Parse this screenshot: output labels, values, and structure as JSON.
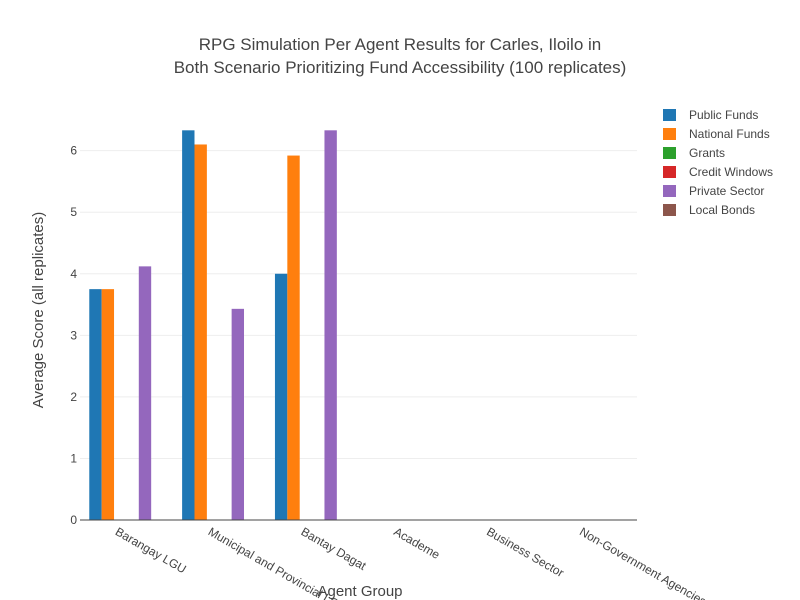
{
  "chart_data": {
    "type": "bar",
    "title": [
      "RPG Simulation Per Agent Results for Carles, Iloilo in",
      "Both Scenario Prioritizing Fund Accessibility (100 replicates)"
    ],
    "xlabel": "Agent Group",
    "ylabel": "Average Score (all replicates)",
    "categories": [
      "Barangay LGU",
      "Municipal and Provincial LGU",
      "Bantay Dagat",
      "Academe",
      "Business Sector",
      "Non-Government Agencies"
    ],
    "ylim": [
      0,
      6.66
    ],
    "yticks": [
      0,
      1,
      2,
      3,
      4,
      5,
      6
    ],
    "grid": true,
    "legend_position": "top-right",
    "series": [
      {
        "name": "Public Funds",
        "color": "#1f77b4",
        "values": [
          3.75,
          6.33,
          4.0,
          null,
          null,
          null
        ]
      },
      {
        "name": "National Funds",
        "color": "#ff7f0e",
        "values": [
          3.75,
          6.1,
          5.92,
          null,
          null,
          null
        ]
      },
      {
        "name": "Grants",
        "color": "#2ca02c",
        "values": [
          null,
          null,
          null,
          null,
          null,
          null
        ]
      },
      {
        "name": "Credit Windows",
        "color": "#d62728",
        "values": [
          null,
          null,
          null,
          null,
          null,
          null
        ]
      },
      {
        "name": "Private Sector",
        "color": "#9467bd",
        "values": [
          4.12,
          3.43,
          6.33,
          null,
          null,
          null
        ]
      },
      {
        "name": "Local Bonds",
        "color": "#8c564b",
        "values": [
          null,
          null,
          null,
          null,
          null,
          null
        ]
      }
    ]
  }
}
